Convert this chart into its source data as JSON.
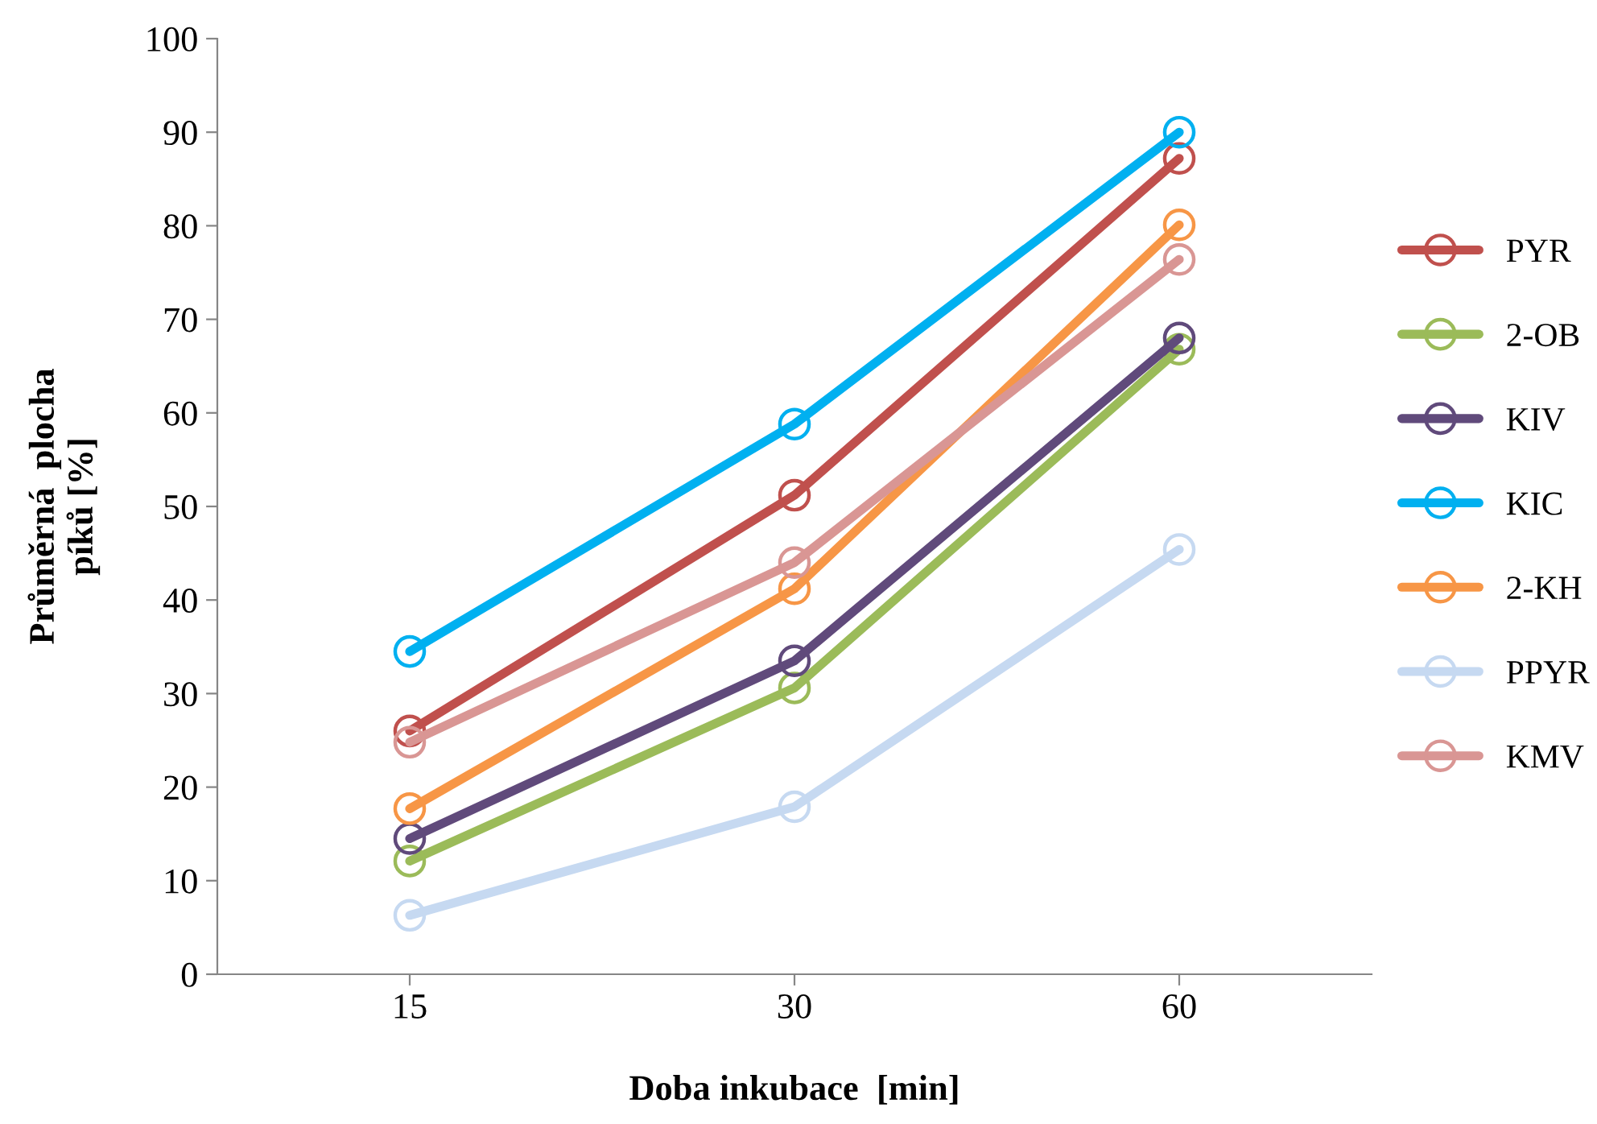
{
  "chart_data": {
    "type": "line",
    "xlabel": "Doba inkubace  [min]",
    "ylabel": "Průměrná  plocha\npíků [%]",
    "categories": [
      "15",
      "30",
      "60"
    ],
    "ylim": [
      0,
      100
    ],
    "yticks": [
      0,
      10,
      20,
      30,
      40,
      50,
      60,
      70,
      80,
      90,
      100
    ],
    "grid": false,
    "legend": "right",
    "marker": "circle",
    "line_style": "solid",
    "series": [
      {
        "name": "PYR",
        "color": "#c0504d",
        "values": [
          26,
          51.2,
          87.2
        ]
      },
      {
        "name": "2-OB",
        "color": "#9bbb59",
        "values": [
          12.1,
          30.6,
          66.8
        ]
      },
      {
        "name": "KIV",
        "color": "#604a7b",
        "values": [
          14.5,
          33.5,
          68
        ]
      },
      {
        "name": "KIC",
        "color": "#00b0f0",
        "values": [
          34.5,
          58.8,
          90
        ]
      },
      {
        "name": "2-KH",
        "color": "#f79646",
        "values": [
          17.7,
          41.2,
          80.1
        ]
      },
      {
        "name": "PPYR",
        "color": "#c6d9f1",
        "values": [
          6.3,
          17.9,
          45.4
        ]
      },
      {
        "name": "KMV",
        "color": "#d99694",
        "values": [
          24.8,
          44,
          76.4
        ]
      }
    ]
  }
}
